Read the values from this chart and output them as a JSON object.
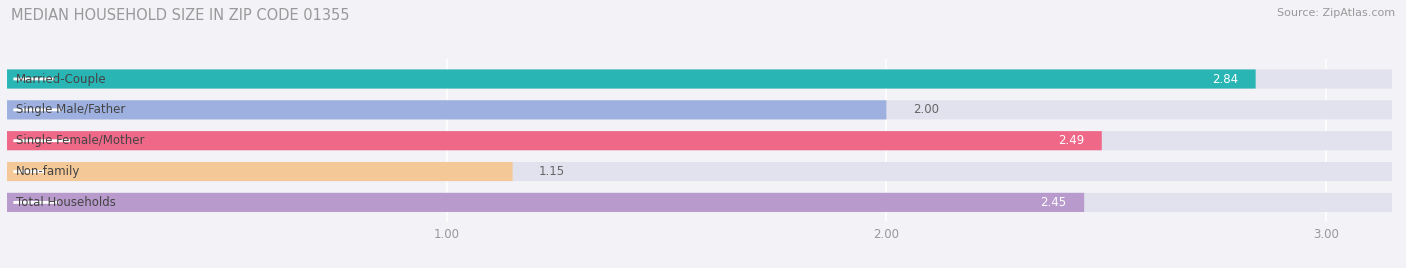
{
  "title": "MEDIAN HOUSEHOLD SIZE IN ZIP CODE 01355",
  "source": "Source: ZipAtlas.com",
  "categories": [
    "Married-Couple",
    "Single Male/Father",
    "Single Female/Mother",
    "Non-family",
    "Total Households"
  ],
  "values": [
    2.84,
    2.0,
    2.49,
    1.15,
    2.45
  ],
  "bar_colors": [
    "#2ab5b5",
    "#9db0e0",
    "#f06888",
    "#f5c898",
    "#b89acc"
  ],
  "value_label_colors": [
    "white",
    "black",
    "white",
    "black",
    "white"
  ],
  "xticks": [
    1.0,
    2.0,
    3.0
  ],
  "xmin": 0.0,
  "xmax": 3.15,
  "background_color": "#f2f2f7",
  "bar_bg_color": "#e2e2ee",
  "title_fontsize": 10.5,
  "source_fontsize": 8,
  "cat_fontsize": 8.5,
  "val_fontsize": 8.5,
  "tick_fontsize": 8.5
}
